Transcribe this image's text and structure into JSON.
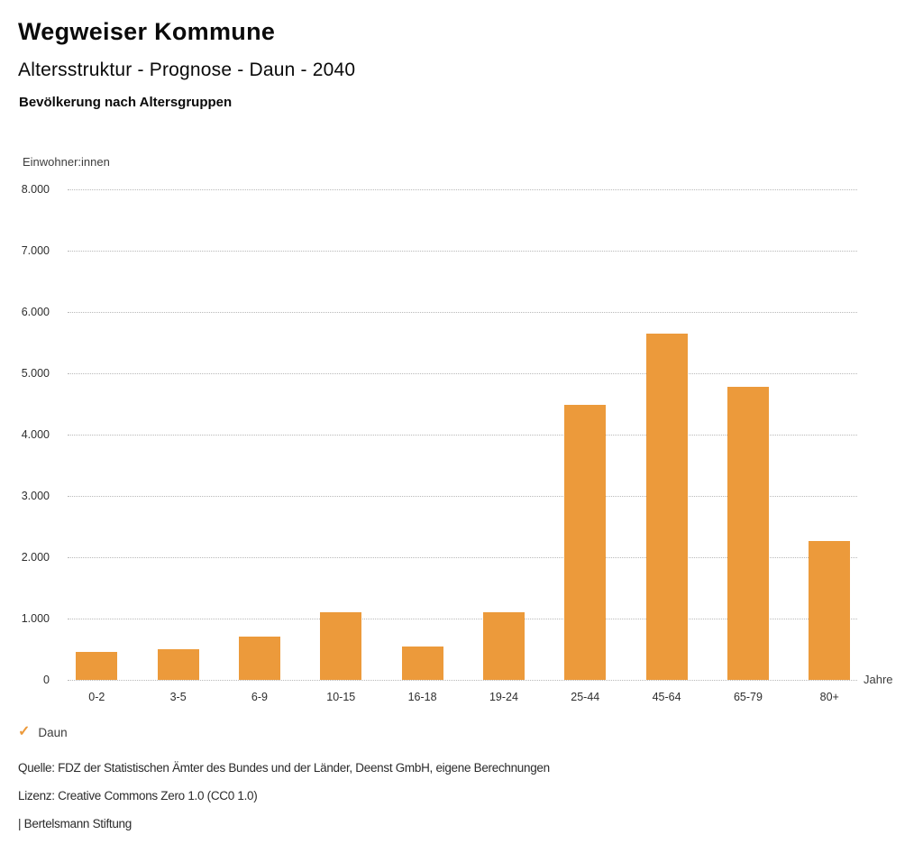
{
  "header": {
    "title": "Wegweiser Kommune",
    "subtitle": "Altersstruktur - Prognose - Daun - 2040",
    "chart_heading": "Bevölkerung nach Altersgruppen"
  },
  "chart_data": {
    "type": "bar",
    "title": "Bevölkerung nach Altersgruppen",
    "categories": [
      "0-2",
      "3-5",
      "6-9",
      "10-15",
      "16-18",
      "19-24",
      "25-44",
      "45-64",
      "65-79",
      "80+"
    ],
    "values": [
      460,
      500,
      700,
      1110,
      550,
      1110,
      4490,
      5650,
      4780,
      2260
    ],
    "series_name": "Daun",
    "ylabel": "Einwohner:innen",
    "xlabel": "Jahre",
    "ylim": [
      0,
      8000
    ],
    "ytick_step": 1000,
    "ytick_labels": [
      "0",
      "1.000",
      "2.000",
      "3.000",
      "4.000",
      "5.000",
      "6.000",
      "7.000",
      "8.000"
    ],
    "grid": true,
    "legend_position": "bottom-left",
    "bar_color": "#EC9A3B"
  },
  "legend": {
    "check_icon": "✓",
    "label": "Daun"
  },
  "footer": {
    "source": "Quelle: FDZ der Statistischen Ämter des Bundes und der Länder, Deenst GmbH, eigene Berechnungen",
    "license": "Lizenz: Creative Commons Zero 1.0 (CC0 1.0)",
    "attribution": "| Bertelsmann Stiftung"
  }
}
